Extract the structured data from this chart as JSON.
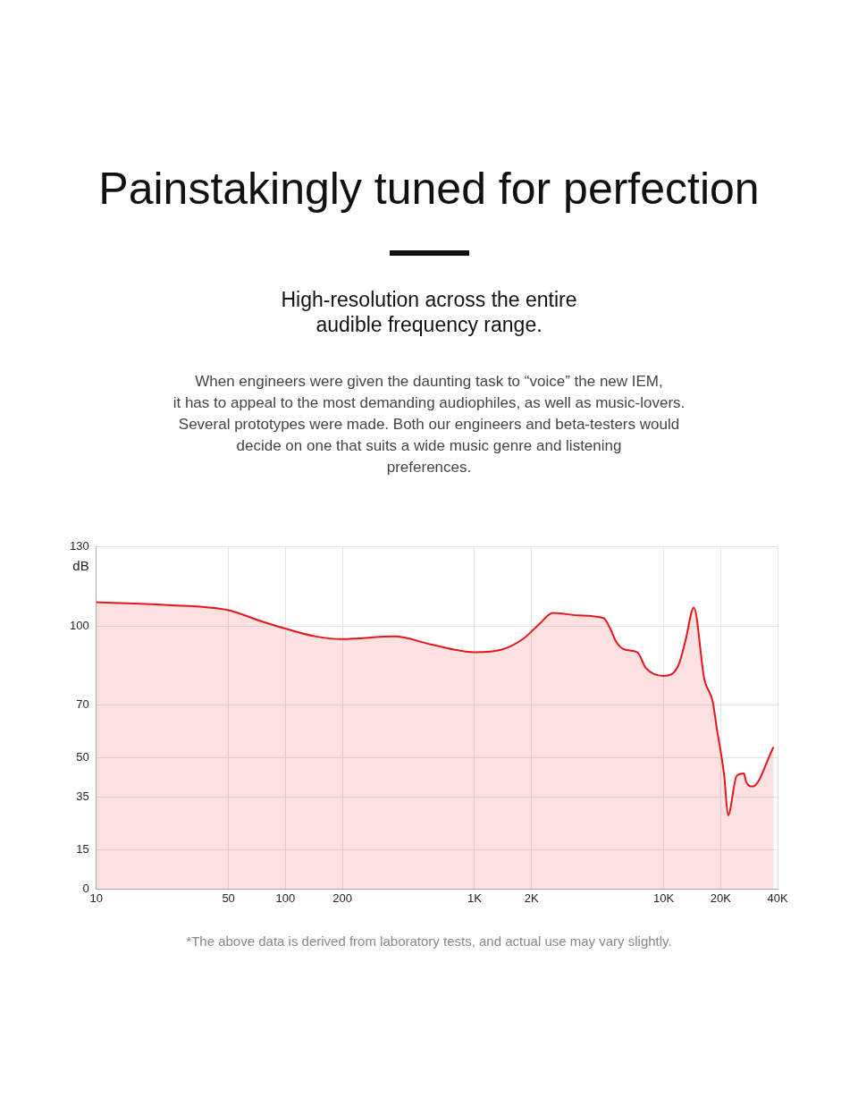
{
  "chart_data": {
    "type": "area",
    "title": "Painstakingly tuned for perfection",
    "subtitle": "High-resolution across the entire\naudible frequency range.",
    "ylabel": "dB",
    "annotations": [
      "When engineers were given the daunting task to “voice” the new IEM,\nit has to appeal to the most demanding audiophiles, as well as music-lovers.\nSeveral prototypes were made. Both our engineers and beta-testers would\ndecide on one that suits a wide music genre and listening\npreferences.",
      "*The above data is derived from laboratory tests, and actual use may vary slightly."
    ],
    "x": [
      10,
      23,
      50,
      73,
      100,
      145,
      200,
      377,
      587,
      1000,
      1393,
      1800,
      2218,
      2590,
      3530,
      4810,
      5220,
      5610,
      6220,
      7260,
      8050,
      10000,
      11960,
      13000,
      14440,
      16380,
      18200,
      19000,
      20900,
      21900,
      24300,
      26600,
      27200,
      29500,
      38100
    ],
    "values": [
      109,
      108,
      106,
      102,
      99,
      96,
      95,
      96,
      93,
      90,
      91,
      95,
      101,
      105,
      104,
      103,
      99,
      94,
      91,
      90,
      84,
      81,
      85,
      94,
      107,
      80,
      71,
      62,
      43,
      28,
      43,
      44,
      41,
      39,
      54
    ],
    "color": "#e8141b",
    "xlim": [
      10,
      40000
    ],
    "xticks": [
      10,
      50,
      100,
      200,
      {
        "value": 1000,
        "label": "1K"
      },
      {
        "value": 2000,
        "label": "2K"
      },
      {
        "value": 10000,
        "label": "10K"
      },
      {
        "value": 20000,
        "label": "20K"
      },
      {
        "value": 40000,
        "label": "40K"
      }
    ],
    "log": "x",
    "ylim": [
      0,
      130
    ],
    "yticks": [
      0,
      15,
      35,
      50,
      70,
      100,
      130
    ],
    "grid": true
  }
}
